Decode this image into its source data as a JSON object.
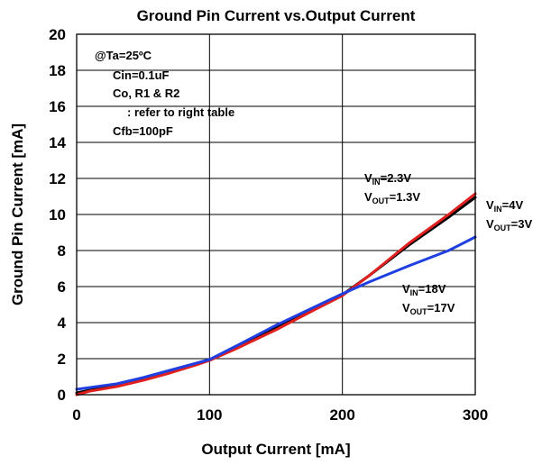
{
  "chart_data": {
    "type": "line",
    "title": "Ground Pin Current vs.Output Current",
    "xlabel": "Output Current [mA]",
    "ylabel": "Ground Pin Current [mA]",
    "xlim": [
      0,
      300
    ],
    "ylim": [
      0,
      20
    ],
    "xticks": [
      "0",
      "100",
      "200",
      "300"
    ],
    "yticks": [
      "0",
      "2",
      "4",
      "6",
      "8",
      "10",
      "12",
      "14",
      "16",
      "18",
      "20"
    ],
    "grid": true,
    "conditions": [
      "@Ta=25ºC",
      "Cin=0.1uF",
      "Co, R1 & R2",
      ": refer to right table",
      "Cfb=100pF"
    ],
    "series": [
      {
        "color": "#000000",
        "label_parts": [
          "V",
          "IN",
          "=4V",
          "V",
          "OUT",
          "=3V"
        ],
        "x": [
          0,
          10,
          30,
          50,
          70,
          90,
          100,
          120,
          150,
          180,
          200,
          220,
          250,
          280,
          300
        ],
        "y": [
          0.1,
          0.25,
          0.5,
          0.85,
          1.25,
          1.7,
          1.95,
          2.6,
          3.7,
          4.8,
          5.55,
          6.6,
          8.3,
          9.85,
          10.95
        ]
      },
      {
        "color": "#e0201f",
        "label_parts": [
          "V",
          "IN",
          "=2.3V",
          "V",
          "OUT",
          "=1.3V"
        ],
        "x": [
          0,
          10,
          30,
          50,
          70,
          90,
          100,
          120,
          150,
          180,
          200,
          220,
          250,
          280,
          300
        ],
        "y": [
          0.0,
          0.2,
          0.45,
          0.8,
          1.2,
          1.65,
          1.9,
          2.55,
          3.6,
          4.75,
          5.5,
          6.6,
          8.4,
          10.0,
          11.15
        ]
      },
      {
        "color": "#1f3fe0",
        "label_parts": [
          "V",
          "IN",
          "=18V",
          "V",
          "OUT",
          "=17V"
        ],
        "x": [
          0,
          10,
          30,
          50,
          70,
          90,
          100,
          120,
          150,
          180,
          200,
          220,
          250,
          280,
          300
        ],
        "y": [
          0.3,
          0.4,
          0.6,
          0.95,
          1.35,
          1.75,
          1.95,
          2.7,
          3.85,
          4.9,
          5.6,
          6.25,
          7.15,
          8.0,
          8.75
        ]
      }
    ]
  }
}
